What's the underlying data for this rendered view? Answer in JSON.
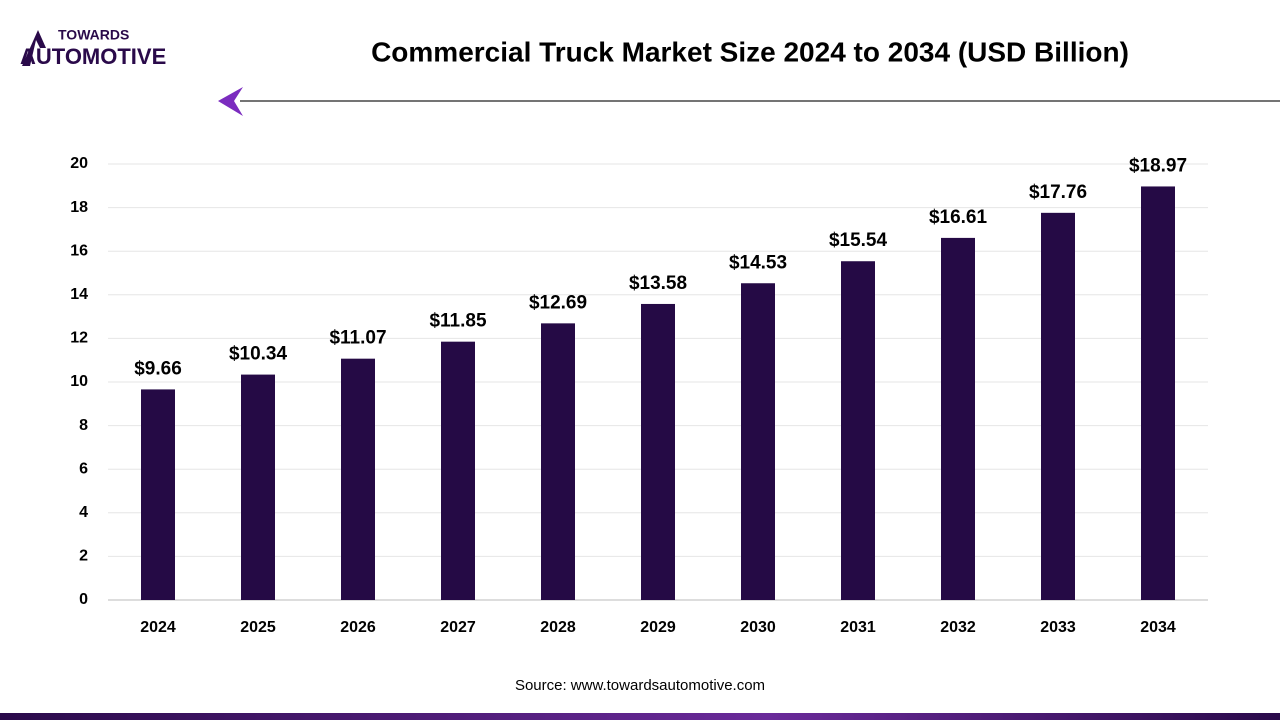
{
  "brand": {
    "line1": "TOWARDS",
    "line2": "AUTOMOTIVE"
  },
  "chart_data": {
    "type": "bar",
    "title": "Commercial Truck Market Size 2024 to 2034 (USD Billion)",
    "source": "Source: www.towardsautomotive.com",
    "categories": [
      "2024",
      "2025",
      "2026",
      "2027",
      "2028",
      "2029",
      "2030",
      "2031",
      "2032",
      "2033",
      "2034"
    ],
    "values": [
      9.66,
      10.34,
      11.07,
      11.85,
      12.69,
      13.58,
      14.53,
      15.54,
      16.61,
      17.76,
      18.97
    ],
    "value_labels": [
      "$9.66",
      "$10.34",
      "$11.07",
      "$11.85",
      "$12.69",
      "$13.58",
      "$14.53",
      "$15.54",
      "$16.61",
      "$17.76",
      "$18.97"
    ],
    "color": "#250a45",
    "ylim": [
      0,
      20
    ],
    "yticks": [
      0,
      2,
      4,
      6,
      8,
      10,
      12,
      14,
      16,
      18,
      20
    ],
    "grid": true
  }
}
